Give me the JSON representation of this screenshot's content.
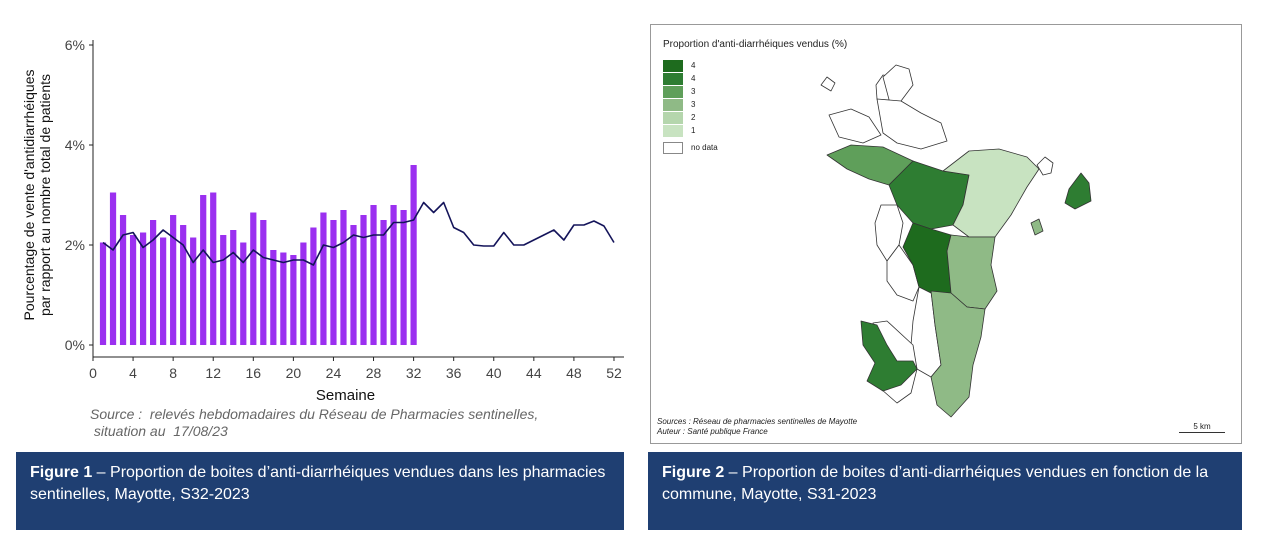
{
  "figure1": {
    "chart_data": {
      "type": "bar",
      "ylabel_line1": "Pourcentage de vente d'antidiarrhéiques",
      "ylabel_line2": "par rapport au nombre total de patients",
      "xlabel": "Semaine",
      "ylim": [
        0,
        6
      ],
      "xlim": [
        0,
        53
      ],
      "y_ticks": [
        "0%",
        "2%",
        "4%",
        "6%"
      ],
      "y_tick_values": [
        0,
        2,
        4,
        6
      ],
      "x_ticks": [
        "0",
        "4",
        "8",
        "12",
        "16",
        "20",
        "24",
        "28",
        "32",
        "36",
        "40",
        "44",
        "48",
        "52"
      ],
      "x_tick_values": [
        0,
        4,
        8,
        12,
        16,
        20,
        24,
        28,
        32,
        36,
        40,
        44,
        48,
        52
      ],
      "grid": false,
      "series": [
        {
          "kind": "bar",
          "color": "#9b30f0",
          "x": [
            1,
            2,
            3,
            4,
            5,
            6,
            7,
            8,
            9,
            10,
            11,
            12,
            13,
            14,
            15,
            16,
            17,
            18,
            19,
            20,
            21,
            22,
            23,
            24,
            25,
            26,
            27,
            28,
            29,
            30,
            31,
            32
          ],
          "values": [
            2.05,
            3.05,
            2.6,
            2.2,
            2.25,
            2.5,
            2.15,
            2.6,
            2.4,
            2.15,
            3.0,
            3.05,
            2.2,
            2.3,
            2.05,
            2.65,
            2.5,
            1.9,
            1.85,
            1.8,
            2.05,
            2.35,
            2.65,
            2.5,
            2.7,
            2.4,
            2.6,
            2.8,
            2.5,
            2.8,
            2.7,
            3.6
          ]
        },
        {
          "kind": "line",
          "color": "#14145a",
          "x": [
            1,
            2,
            3,
            4,
            5,
            6,
            7,
            8,
            9,
            10,
            11,
            12,
            13,
            14,
            15,
            16,
            17,
            18,
            19,
            20,
            21,
            22,
            23,
            24,
            25,
            26,
            27,
            28,
            29,
            30,
            31,
            32,
            33,
            34,
            35,
            36,
            37,
            38,
            39,
            40,
            41,
            42,
            43,
            44,
            45,
            46,
            47,
            48,
            49,
            50,
            51,
            52
          ],
          "values": [
            2.05,
            1.9,
            2.2,
            2.25,
            1.95,
            2.1,
            2.3,
            2.15,
            2.0,
            1.65,
            1.9,
            1.65,
            1.7,
            1.85,
            1.65,
            1.9,
            1.75,
            1.7,
            1.65,
            1.7,
            1.7,
            1.6,
            2.0,
            1.95,
            2.05,
            2.2,
            2.15,
            2.2,
            2.2,
            2.45,
            2.45,
            2.5,
            2.85,
            2.65,
            2.85,
            2.35,
            2.25,
            2.0,
            1.98,
            1.98,
            2.25,
            2.0,
            2.0,
            2.1,
            2.2,
            2.3,
            2.1,
            2.4,
            2.4,
            2.48,
            2.38,
            2.05
          ]
        }
      ]
    },
    "source_line1": "Source :  relevés hebdomadaires du Réseau de Pharmacies sentinelles,",
    "source_line2": " situation au  17/08/23",
    "caption_bold": "Figure 1",
    "caption_text": " –  Proportion de boites d’anti-diarrhéiques vendues dans les pharmacies sentinelles, Mayotte, S32-2023"
  },
  "figure2": {
    "map_title": "Proportion d'anti-diarrhéiques vendus (%)",
    "legend": [
      {
        "label": "4",
        "color": "#1e6b1e"
      },
      {
        "label": "4",
        "color": "#2e7d32"
      },
      {
        "label": "3",
        "color": "#5f9f5a"
      },
      {
        "label": "3",
        "color": "#8fba86"
      },
      {
        "label": "2",
        "color": "#b5d6ad"
      },
      {
        "label": "1",
        "color": "#c8e3c1"
      },
      {
        "label": "no data",
        "color": "#ffffff"
      }
    ],
    "source_line1": "Sources : Réseau de pharmacies sentinelles de Mayotte",
    "source_line2": "Auteur : Santé publique France",
    "scale_label": "5 km",
    "caption_bold": "Figure 2",
    "caption_text": " –  Proportion de boites d’anti-diarrhéiques vendues en fonction de la commune, Mayotte, S31-2023"
  }
}
